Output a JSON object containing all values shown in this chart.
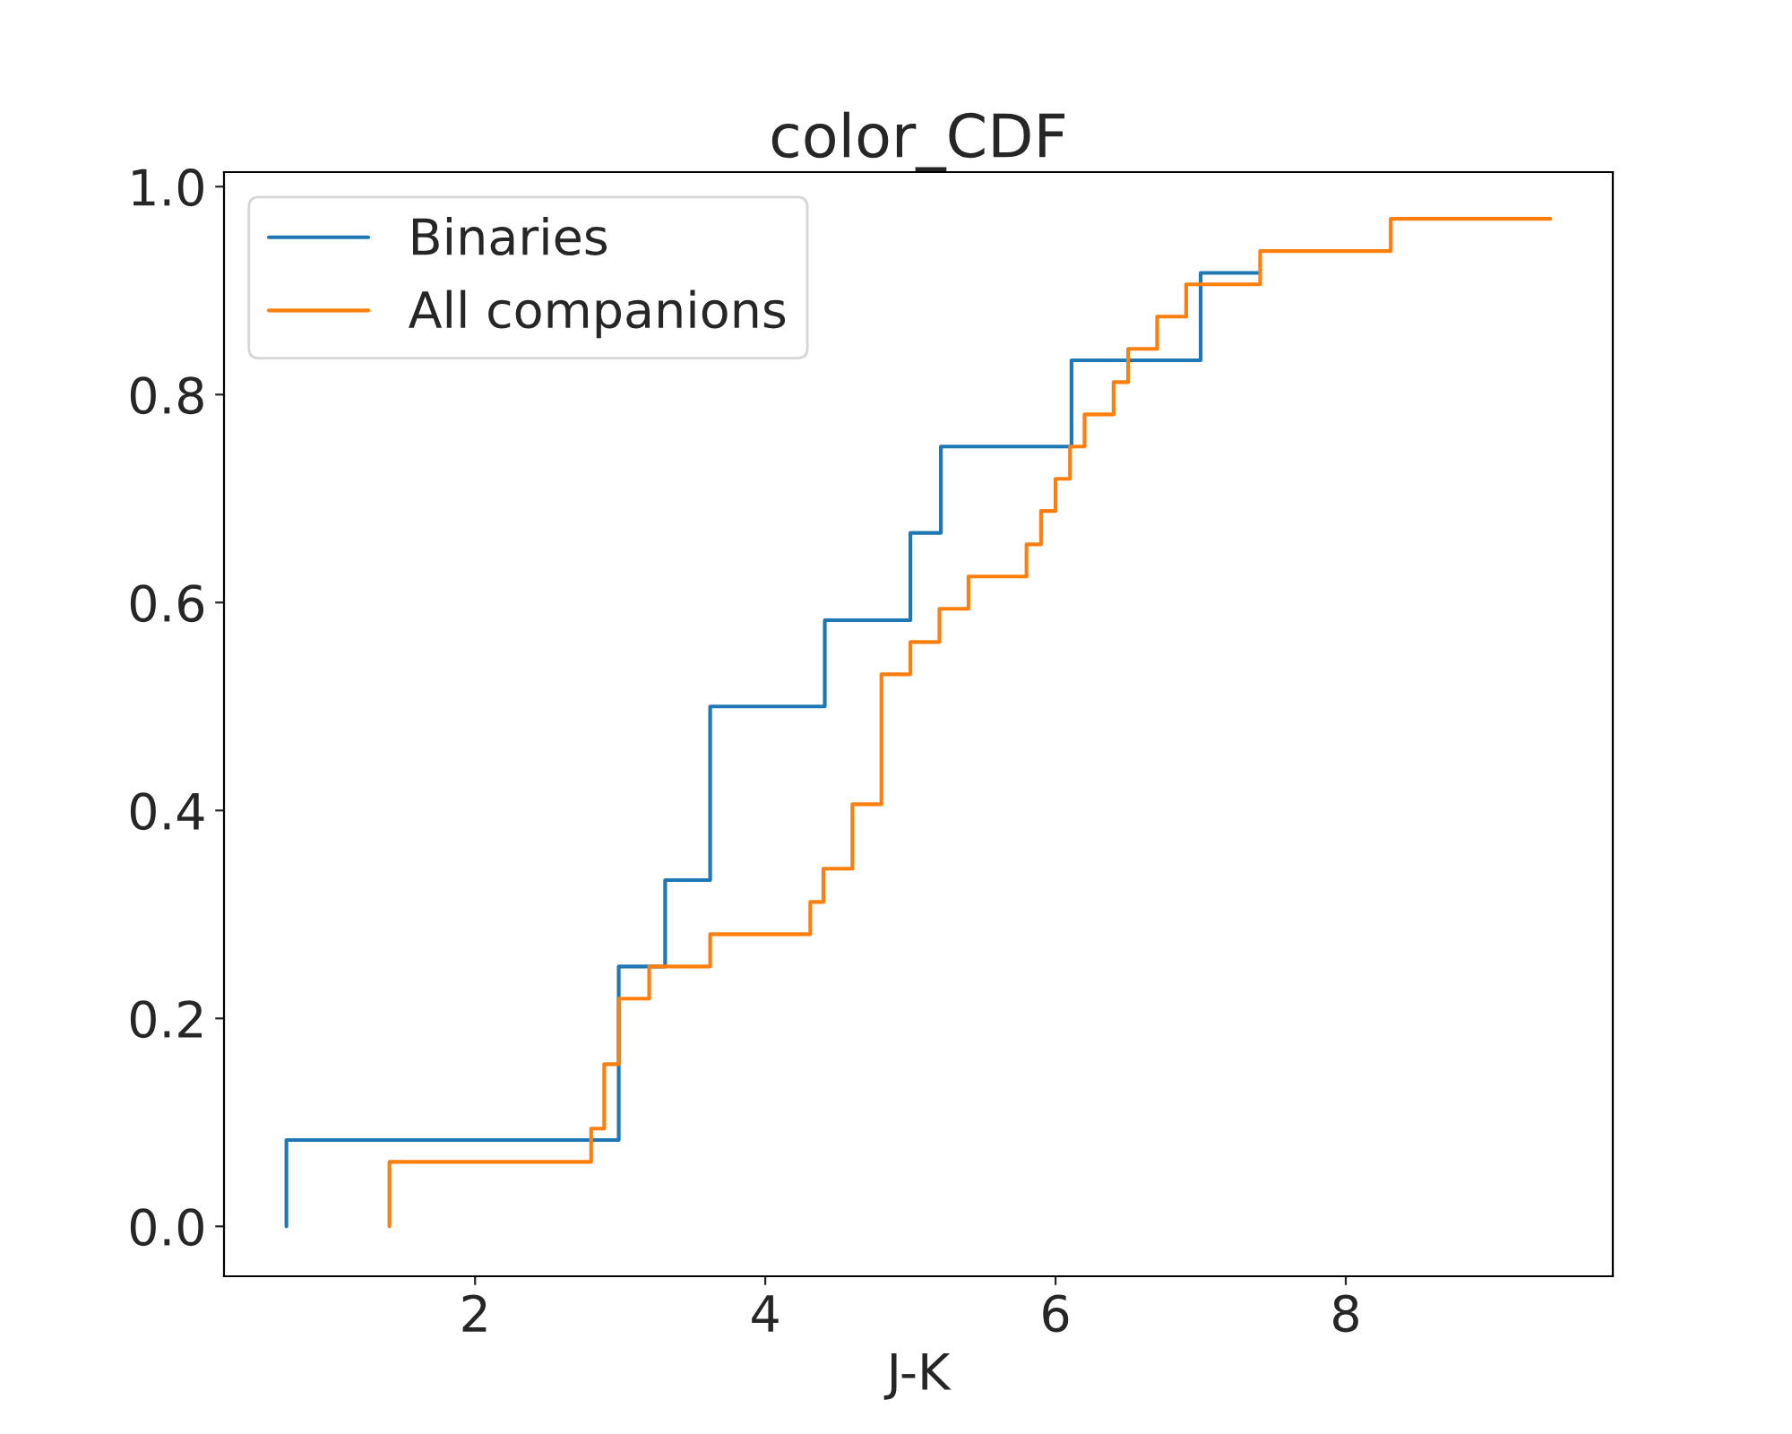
{
  "chart_data": {
    "type": "step",
    "title": "color_CDF",
    "xlabel": "J-K",
    "series": [
      {
        "name": "Binaries",
        "color": "#1f77b4",
        "x": [
          0.7,
          2.99,
          3.31,
          3.62,
          4.41,
          5.0,
          5.21,
          6.11,
          7.0,
          7.41
        ],
        "values": [
          0,
          0.083,
          0.25,
          0.333,
          0.5,
          0.583,
          0.667,
          0.75,
          0.833,
          0.917
        ]
      },
      {
        "name": "All companions",
        "color": "#ff7f0e",
        "x": [
          1.41,
          2.8,
          2.89,
          2.99,
          3.2,
          3.62,
          4.31,
          4.4,
          4.6,
          4.8,
          5.0,
          5.2,
          5.4,
          5.8,
          5.9,
          6.0,
          6.1,
          6.2,
          6.4,
          6.5,
          6.7,
          6.9,
          7.41,
          8.31,
          9.41
        ],
        "values": [
          0,
          0.062,
          0.094,
          0.156,
          0.219,
          0.25,
          0.281,
          0.312,
          0.344,
          0.406,
          0.531,
          0.562,
          0.594,
          0.625,
          0.656,
          0.688,
          0.719,
          0.75,
          0.781,
          0.812,
          0.844,
          0.875,
          0.906,
          0.938,
          0.969
        ]
      }
    ],
    "xlim": [
      0.27,
      9.84
    ],
    "ylim": [
      -0.048,
      1.014
    ],
    "xticks": [
      2,
      4,
      6,
      8
    ],
    "yticks": [
      {
        "value": 0,
        "label": "0.0"
      },
      {
        "value": 0.2,
        "label": "0.2"
      },
      {
        "value": 0.4,
        "label": "0.4"
      },
      {
        "value": 0.6,
        "label": "0.6"
      },
      {
        "value": 0.8,
        "label": "0.8"
      },
      {
        "value": 1.0,
        "label": "1.0"
      }
    ],
    "legend": "top left",
    "grid": false
  }
}
